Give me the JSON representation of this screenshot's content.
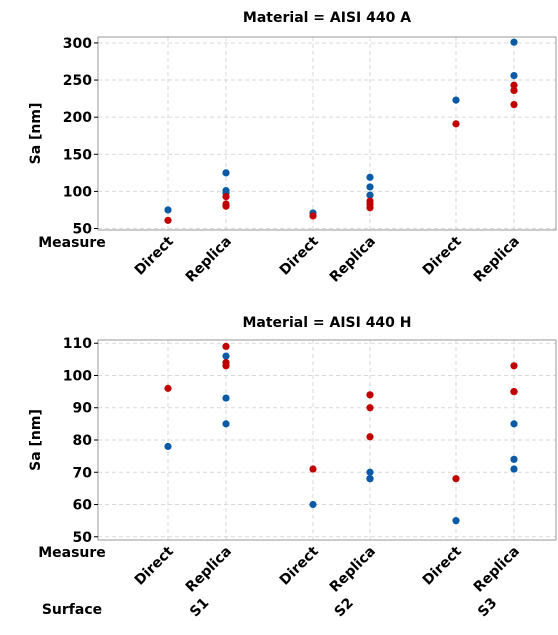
{
  "chart_data": [
    {
      "type": "scatter",
      "title": "Material = AISI 440 A",
      "ylabel": "Sa [nm]",
      "ylim": [
        48,
        308
      ],
      "yticks": [
        50,
        100,
        150,
        200,
        250,
        300
      ],
      "categories": [
        "Direct",
        "Replica",
        "Direct",
        "Replica",
        "Direct",
        "Replica"
      ],
      "row_label": "Measure",
      "grid": true,
      "series": [
        {
          "color": "#0b5aa6",
          "points": [
            [
              0,
              75
            ],
            [
              1,
              125
            ],
            [
              1,
              101
            ],
            [
              1,
              98
            ],
            [
              2,
              71
            ],
            [
              3,
              119
            ],
            [
              3,
              106
            ],
            [
              3,
              95
            ],
            [
              4,
              223
            ],
            [
              5,
              301
            ],
            [
              5,
              256
            ]
          ]
        },
        {
          "color": "#c00000",
          "points": [
            [
              0,
              61
            ],
            [
              1,
              93
            ],
            [
              1,
              83
            ],
            [
              1,
              80
            ],
            [
              2,
              67
            ],
            [
              3,
              87
            ],
            [
              3,
              83
            ],
            [
              3,
              78
            ],
            [
              4,
              191
            ],
            [
              5,
              243
            ],
            [
              5,
              236
            ],
            [
              5,
              217
            ]
          ]
        }
      ]
    },
    {
      "type": "scatter",
      "title": "Material = AISI 440 H",
      "ylabel": "Sa [nm]",
      "ylim": [
        49,
        111
      ],
      "yticks": [
        50,
        60,
        70,
        80,
        90,
        100,
        110
      ],
      "categories": [
        "Direct",
        "Replica",
        "Direct",
        "Replica",
        "Direct",
        "Replica"
      ],
      "row_label": "Measure",
      "grid": true,
      "groups": {
        "label": "Surface",
        "values": [
          "S1",
          "S2",
          "S3"
        ]
      },
      "series": [
        {
          "color": "#0b5aa6",
          "points": [
            [
              0,
              78
            ],
            [
              1,
              106
            ],
            [
              1,
              93
            ],
            [
              1,
              85
            ],
            [
              2,
              60
            ],
            [
              3,
              70
            ],
            [
              3,
              68
            ],
            [
              3,
              68
            ],
            [
              4,
              55
            ],
            [
              5,
              85
            ],
            [
              5,
              74
            ],
            [
              5,
              71
            ]
          ]
        },
        {
          "color": "#c00000",
          "points": [
            [
              0,
              96
            ],
            [
              1,
              109
            ],
            [
              1,
              104
            ],
            [
              1,
              103
            ],
            [
              2,
              71
            ],
            [
              3,
              94
            ],
            [
              3,
              90
            ],
            [
              3,
              81
            ],
            [
              4,
              68
            ],
            [
              5,
              103
            ],
            [
              5,
              95
            ],
            [
              5,
              95
            ]
          ]
        }
      ]
    }
  ]
}
